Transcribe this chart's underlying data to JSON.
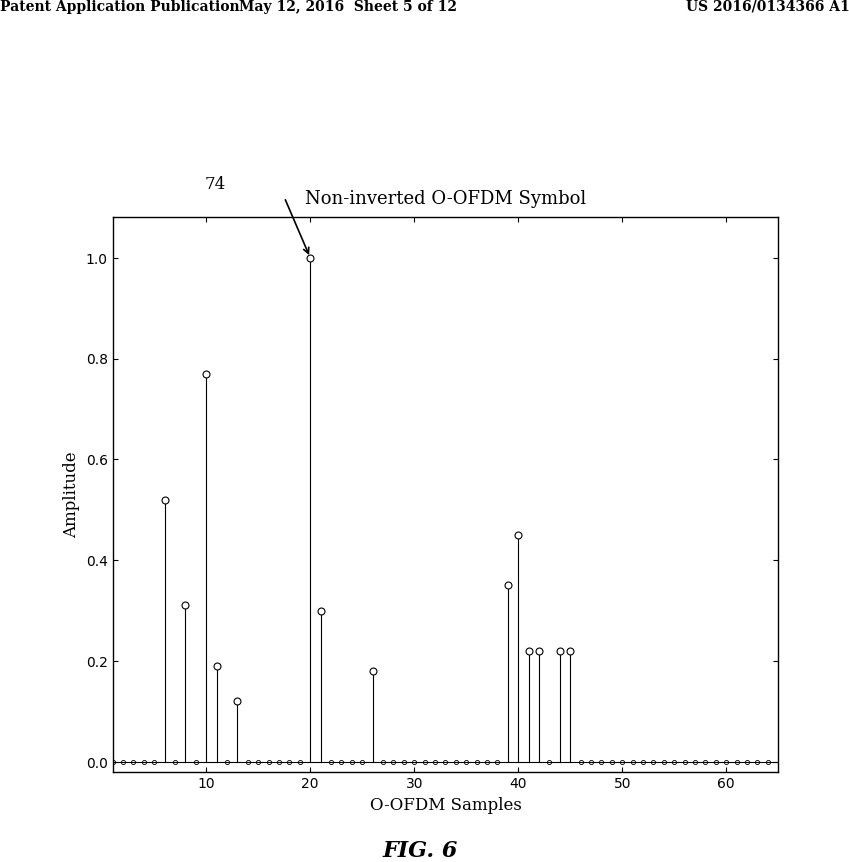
{
  "title": "Non-inverted O-OFDM Symbol",
  "xlabel": "O-OFDM Samples",
  "ylabel": "Amplitude",
  "fig_label": "FIG. 6",
  "annotation_label": "74",
  "header_left": "Patent Application Publication",
  "header_mid": "May 12, 2016  Sheet 5 of 12",
  "header_right": "US 2016/0134366 A1",
  "xlim": [
    1,
    65
  ],
  "ylim": [
    0,
    1.05
  ],
  "yticks": [
    0,
    0.2,
    0.4,
    0.6,
    0.8,
    1.0
  ],
  "xticks": [
    10,
    20,
    30,
    40,
    50,
    60
  ],
  "samples": [
    1,
    2,
    3,
    4,
    5,
    6,
    7,
    8,
    9,
    10,
    11,
    12,
    13,
    14,
    15,
    16,
    17,
    18,
    19,
    20,
    21,
    22,
    23,
    24,
    25,
    26,
    27,
    28,
    29,
    30,
    31,
    32,
    33,
    34,
    35,
    36,
    37,
    38,
    39,
    40,
    41,
    42,
    43,
    44,
    45,
    46,
    47,
    48,
    49,
    50,
    51,
    52,
    53,
    54,
    55,
    56,
    57,
    58,
    59,
    60,
    61,
    62,
    63,
    64
  ],
  "amplitudes": [
    0.0,
    0.0,
    0.0,
    0.0,
    0.0,
    0.52,
    0.0,
    0.31,
    0.0,
    0.77,
    0.19,
    0.0,
    0.12,
    0.0,
    0.0,
    0.0,
    0.0,
    0.0,
    0.0,
    1.0,
    0.3,
    0.0,
    0.0,
    0.0,
    0.0,
    0.18,
    0.0,
    0.0,
    0.0,
    0.0,
    0.0,
    0.0,
    0.0,
    0.0,
    0.0,
    0.0,
    0.0,
    0.0,
    0.35,
    0.45,
    0.22,
    0.22,
    0.0,
    0.22,
    0.22,
    0.0,
    0.0,
    0.0,
    0.0,
    0.0,
    0.0,
    0.0,
    0.0,
    0.0,
    0.0,
    0.0,
    0.0,
    0.0,
    0.0,
    0.0,
    0.0,
    0.0,
    0.0,
    0.0
  ]
}
